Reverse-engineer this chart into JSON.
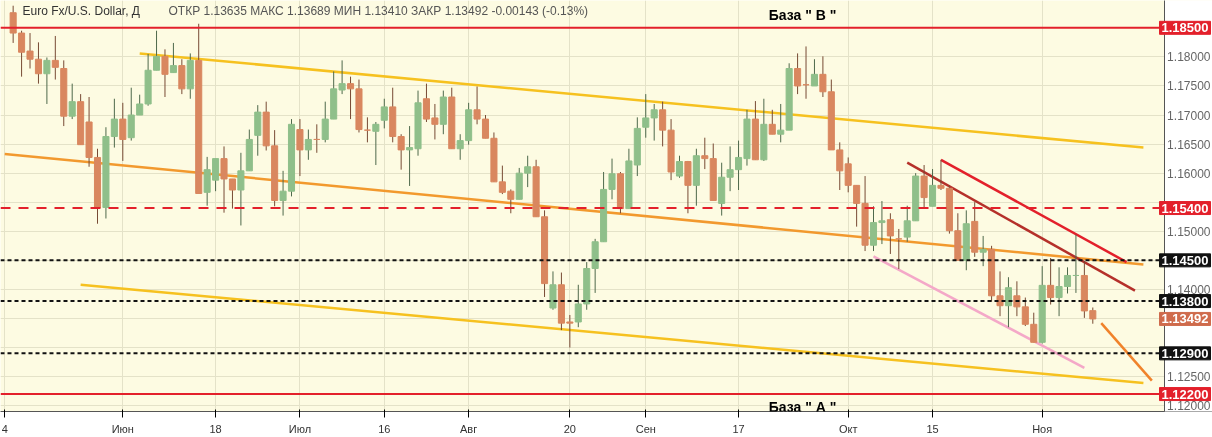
{
  "chart_data": {
    "type": "candlestick",
    "title": "Euro Fx/U.S. Dollar, Д",
    "subtitle": "ОТКР 1.13635   МАКС 1.13689   МИН 1.13410   ЗАКР 1.13492   -0.00143 (-0.13%)",
    "categories": [
      "4",
      null,
      null,
      null,
      null,
      null,
      null,
      null,
      null,
      null,
      null,
      null,
      null,
      null,
      "Июн",
      null,
      null,
      null,
      null,
      null,
      null,
      null,
      null,
      null,
      null,
      "18",
      null,
      null,
      null,
      null,
      null,
      null,
      null,
      null,
      null,
      "Июл",
      null,
      null,
      null,
      null,
      null,
      null,
      null,
      null,
      null,
      "16",
      null,
      null,
      null,
      null,
      null,
      null,
      null,
      null,
      null,
      "Авг",
      null,
      null,
      null,
      null,
      null,
      null,
      null,
      null,
      null,
      null,
      null,
      "20",
      null,
      null,
      null,
      null,
      null,
      null,
      null,
      null,
      "Сен",
      null,
      null,
      null,
      null,
      null,
      null,
      null,
      null,
      null,
      null,
      "17",
      null,
      null,
      null,
      null,
      null,
      null,
      null,
      null,
      null,
      null,
      null,
      null,
      "Окт",
      null,
      null,
      null,
      null,
      null,
      null,
      null,
      null,
      null,
      "15",
      null,
      null,
      null,
      null,
      null,
      null,
      null,
      null,
      null,
      null,
      null,
      null,
      "Ноя",
      null,
      null,
      null,
      null,
      null,
      null,
      null,
      null,
      null,
      null,
      null,
      null,
      null,
      null
    ],
    "ohlc": [
      null,
      [
        1.1876,
        1.1888,
        1.1824,
        1.1841
      ],
      [
        1.1841,
        1.1845,
        1.1766,
        1.1808
      ],
      [
        1.181,
        1.1841,
        1.178,
        1.1796
      ],
      [
        1.1796,
        1.1825,
        1.1754,
        1.1771
      ],
      [
        1.1771,
        1.1799,
        1.1719,
        1.1794
      ],
      [
        1.1794,
        1.1836,
        1.1761,
        1.1782
      ],
      [
        1.178,
        1.1794,
        1.1681,
        1.1698
      ],
      [
        1.1698,
        1.1754,
        1.1693,
        1.1723
      ],
      [
        1.1723,
        1.1736,
        1.1649,
        1.1649
      ],
      [
        1.1688,
        1.1731,
        1.1611,
        1.1627
      ],
      [
        1.1627,
        1.1642,
        1.1513,
        1.1541
      ],
      [
        1.1541,
        1.1679,
        1.1522,
        1.1663
      ],
      [
        1.1663,
        1.1728,
        1.1644,
        1.1693
      ],
      [
        1.1693,
        1.1721,
        1.1621,
        1.1658
      ],
      [
        1.1661,
        1.1747,
        1.1656,
        1.17
      ],
      [
        1.17,
        1.1735,
        1.17,
        1.1719
      ],
      [
        1.1719,
        1.1805,
        1.1716,
        1.1777
      ],
      [
        1.1777,
        1.1845,
        1.1777,
        1.1801
      ],
      [
        1.1801,
        1.1813,
        1.1731,
        1.177
      ],
      [
        1.1773,
        1.1824,
        1.1773,
        1.1785
      ],
      [
        1.1785,
        1.1796,
        1.1736,
        1.1745
      ],
      [
        1.1745,
        1.1806,
        1.1728,
        1.1794
      ],
      [
        1.1794,
        1.1857,
        1.1565,
        1.1565
      ],
      [
        1.1567,
        1.1628,
        1.1544,
        1.1606
      ],
      [
        1.1588,
        1.1625,
        1.1569,
        1.1625
      ],
      [
        1.1625,
        1.1646,
        1.1532,
        1.159
      ],
      [
        1.159,
        1.159,
        1.1539,
        1.1571
      ],
      [
        1.1571,
        1.1635,
        1.151,
        1.1604
      ],
      [
        1.1604,
        1.1675,
        1.1604,
        1.1658
      ],
      [
        1.1665,
        1.1717,
        1.163,
        1.1705
      ],
      [
        1.1705,
        1.1723,
        1.1639,
        1.1647
      ],
      [
        1.1647,
        1.1674,
        1.1543,
        1.1553
      ],
      [
        1.1553,
        1.1604,
        1.1527,
        1.1569
      ],
      [
        1.1569,
        1.1693,
        1.156,
        1.1684
      ],
      [
        1.1675,
        1.1693,
        1.1595,
        1.164
      ],
      [
        1.164,
        1.1675,
        1.1623,
        1.1658
      ],
      [
        1.1658,
        1.1684,
        1.1635,
        1.1658
      ],
      [
        1.1658,
        1.1723,
        1.1653,
        1.1693
      ],
      [
        1.1693,
        1.1775,
        1.1693,
        1.1745
      ],
      [
        1.1743,
        1.1794,
        1.1736,
        1.1754
      ],
      [
        1.1754,
        1.1766,
        1.1693,
        1.1745
      ],
      [
        1.1745,
        1.1761,
        1.167,
        1.1675
      ],
      [
        1.1674,
        1.1696,
        1.1653,
        1.1674
      ],
      [
        1.1672,
        1.1688,
        1.1614,
        1.1684
      ],
      [
        1.1691,
        1.1728,
        1.1677,
        1.1714
      ],
      [
        1.1714,
        1.1747,
        1.1653,
        1.1663
      ],
      [
        1.1663,
        1.1667,
        1.1606,
        1.164
      ],
      [
        1.164,
        1.1681,
        1.1578,
        1.1644
      ],
      [
        1.1642,
        1.1742,
        1.163,
        1.1721
      ],
      [
        1.1728,
        1.1754,
        1.1688,
        1.1693
      ],
      [
        1.1695,
        1.1719,
        1.1658,
        1.1684
      ],
      [
        1.1684,
        1.1742,
        1.1667,
        1.1731
      ],
      [
        1.1731,
        1.1747,
        1.1642,
        1.1642
      ],
      [
        1.1642,
        1.1667,
        1.1623,
        1.1656
      ],
      [
        1.1656,
        1.1721,
        1.1649,
        1.1709
      ],
      [
        1.1709,
        1.1749,
        1.1684,
        1.1693
      ],
      [
        1.1693,
        1.17,
        1.166,
        1.166
      ],
      [
        1.166,
        1.167,
        1.1585,
        1.1585
      ],
      [
        1.1585,
        1.1613,
        1.1564,
        1.1567
      ],
      [
        1.1569,
        1.1572,
        1.1531,
        1.1555
      ],
      [
        1.1555,
        1.1609,
        1.1555,
        1.16
      ],
      [
        1.16,
        1.163,
        1.1576,
        1.1611
      ],
      [
        1.1611,
        1.1623,
        1.1525,
        1.1525
      ],
      [
        1.1525,
        1.1536,
        1.1387,
        1.141
      ],
      [
        1.1368,
        1.1431,
        1.1365,
        1.1408
      ],
      [
        1.1408,
        1.1429,
        1.133,
        1.1342
      ],
      [
        1.1344,
        1.1356,
        1.13,
        1.1342
      ],
      [
        1.1344,
        1.1408,
        1.1335,
        1.1375
      ],
      [
        1.1375,
        1.1447,
        1.1365,
        1.1436
      ],
      [
        1.1436,
        1.1487,
        1.1394,
        1.1482
      ],
      [
        1.1482,
        1.1602,
        1.1482,
        1.1572
      ],
      [
        1.1572,
        1.1625,
        1.1555,
        1.1599
      ],
      [
        1.1599,
        1.1602,
        1.1531,
        1.1539
      ],
      [
        1.1539,
        1.1642,
        1.1539,
        1.1621
      ],
      [
        1.1614,
        1.1696,
        1.1595,
        1.1677
      ],
      [
        1.1679,
        1.1736,
        1.1661,
        1.1695
      ],
      [
        1.1695,
        1.1719,
        1.1656,
        1.1709
      ],
      [
        1.1709,
        1.1723,
        1.1646,
        1.1674
      ],
      [
        1.1674,
        1.1693,
        1.1588,
        1.1602
      ],
      [
        1.1595,
        1.163,
        1.1592,
        1.162
      ],
      [
        1.162,
        1.1621,
        1.1531,
        1.1579
      ],
      [
        1.1579,
        1.1642,
        1.1544,
        1.163
      ],
      [
        1.163,
        1.1661,
        1.1607,
        1.1625
      ],
      [
        1.1625,
        1.1651,
        1.1553,
        1.1553
      ],
      [
        1.1548,
        1.1618,
        1.1527,
        1.1593
      ],
      [
        1.1593,
        1.1646,
        1.1569,
        1.1606
      ],
      [
        1.1606,
        1.1656,
        1.1571,
        1.1627
      ],
      [
        1.1625,
        1.1709,
        1.1613,
        1.1693
      ],
      [
        1.1693,
        1.1724,
        1.1623,
        1.1623
      ],
      [
        1.1623,
        1.1728,
        1.1621,
        1.1684
      ],
      [
        1.1684,
        1.1709,
        1.1667,
        1.1667
      ],
      [
        1.1667,
        1.1719,
        1.1653,
        1.1674
      ],
      [
        1.1674,
        1.1789,
        1.1674,
        1.178
      ],
      [
        1.178,
        1.1806,
        1.1736,
        1.175
      ],
      [
        1.1752,
        1.1818,
        1.1728,
        1.1752
      ],
      [
        1.175,
        1.1796,
        1.175,
        1.177
      ],
      [
        1.177,
        1.1801,
        1.1731,
        1.174
      ],
      [
        1.174,
        1.1761,
        1.164,
        1.164
      ],
      [
        1.164,
        1.1653,
        1.1571,
        1.1604
      ],
      [
        1.1616,
        1.1627,
        1.1567,
        1.1579
      ],
      [
        1.1579,
        1.1579,
        1.1508,
        1.1548
      ],
      [
        1.1548,
        1.1595,
        1.1466,
        1.1476
      ],
      [
        1.1476,
        1.1543,
        1.1466,
        1.1515
      ],
      [
        1.1515,
        1.1552,
        1.1478,
        1.1518
      ],
      [
        1.152,
        1.1531,
        1.1461,
        1.1492
      ],
      [
        1.1487,
        1.1504,
        1.1435,
        1.1487
      ],
      [
        1.149,
        1.1544,
        1.1482,
        1.1518
      ],
      [
        1.1518,
        1.16,
        1.1518,
        1.1595
      ],
      [
        1.1595,
        1.1614,
        1.1539,
        1.1558
      ],
      [
        1.1543,
        1.1607,
        1.1543,
        1.1579
      ],
      [
        1.1579,
        1.1623,
        1.1571,
        1.1574
      ],
      [
        1.1574,
        1.1579,
        1.1496,
        1.1501
      ],
      [
        1.1501,
        1.1531,
        1.145,
        1.145
      ],
      [
        1.145,
        1.1536,
        1.1433,
        1.1513
      ],
      [
        1.1517,
        1.155,
        1.1456,
        1.1464
      ],
      [
        1.1464,
        1.1492,
        1.144,
        1.1469
      ],
      [
        1.1469,
        1.1475,
        1.1379,
        1.1389
      ],
      [
        1.1389,
        1.1431,
        1.1354,
        1.1372
      ],
      [
        1.1372,
        1.1421,
        1.1335,
        1.1403
      ],
      [
        1.1389,
        1.1414,
        1.1354,
        1.137
      ],
      [
        1.137,
        1.1386,
        1.1337,
        1.134
      ],
      [
        1.134,
        1.136,
        1.1309,
        1.1309
      ],
      [
        1.1309,
        1.144,
        1.1307,
        1.1407
      ],
      [
        1.1407,
        1.1454,
        1.1374,
        1.1386
      ],
      [
        1.1386,
        1.1438,
        1.1354,
        1.1405
      ],
      [
        1.1405,
        1.1438,
        1.1393,
        1.1424
      ],
      [
        1.1424,
        1.1494,
        1.1394,
        1.1424
      ],
      [
        1.1424,
        1.1449,
        1.1351,
        1.1363
      ],
      [
        1.13635,
        1.13689,
        1.1341,
        1.13492
      ],
      null,
      null,
      null,
      null,
      null,
      null,
      null,
      null
    ],
    "colors": [
      null,
      "#d9875f",
      "#d9875f",
      "#d9875f",
      "#d9875f",
      "#8fbf8a",
      "#d9875f",
      "#d9875f",
      "#8fbf8a",
      "#d9875f",
      "#d9875f",
      "#d9875f",
      "#8fbf8a",
      "#8fbf8a",
      "#d9875f",
      "#8fbf8a",
      "#8fbf8a",
      "#8fbf8a",
      "#8fbf8a",
      "#d9875f",
      "#8fbf8a",
      "#d9875f",
      "#8fbf8a",
      "#d9875f",
      "#8fbf8a",
      "#8fbf8a",
      "#d9875f",
      "#d9875f",
      "#8fbf8a",
      "#8fbf8a",
      "#8fbf8a",
      "#d9875f",
      "#d9875f",
      "#8fbf8a",
      "#8fbf8a",
      "#d9875f",
      "#8fbf8a",
      "#d9875f",
      "#8fbf8a",
      "#8fbf8a",
      "#8fbf8a",
      "#d9875f",
      "#d9875f",
      "#d9875f",
      "#8fbf8a",
      "#8fbf8a",
      "#d9875f",
      "#d9875f",
      "#8fbf8a",
      "#8fbf8a",
      "#d9875f",
      "#d9875f",
      "#8fbf8a",
      "#d9875f",
      "#8fbf8a",
      "#8fbf8a",
      "#d9875f",
      "#d9875f",
      "#d9875f",
      "#d9875f",
      "#d9875f",
      "#8fbf8a",
      "#8fbf8a",
      "#d9875f",
      "#d9875f",
      "#8fbf8a",
      "#d9875f",
      "#d9875f",
      "#8fbf8a",
      "#8fbf8a",
      "#8fbf8a",
      "#8fbf8a",
      "#8fbf8a",
      "#d9875f",
      "#8fbf8a",
      "#8fbf8a",
      "#8fbf8a",
      "#8fbf8a",
      "#d9875f",
      "#d9875f",
      "#8fbf8a",
      "#d9875f",
      "#8fbf8a",
      "#d9875f",
      "#d9875f",
      "#8fbf8a",
      "#8fbf8a",
      "#8fbf8a",
      "#8fbf8a",
      "#d9875f",
      "#8fbf8a",
      "#d9875f",
      "#8fbf8a",
      "#8fbf8a",
      "#d9875f",
      "#d9875f",
      "#8fbf8a",
      "#d9875f",
      "#d9875f",
      "#d9875f",
      "#d9875f",
      "#d9875f",
      "#d9875f",
      "#8fbf8a",
      "#8fbf8a",
      "#d9875f",
      "#d9875f",
      "#8fbf8a",
      "#8fbf8a",
      "#d9875f",
      "#8fbf8a",
      "#d9875f",
      "#d9875f",
      "#d9875f",
      "#8fbf8a",
      "#d9875f",
      "#8fbf8a",
      "#d9875f",
      "#d9875f",
      "#8fbf8a",
      "#d9875f",
      "#d9875f",
      "#d9875f",
      "#8fbf8a",
      "#d9875f",
      "#8fbf8a",
      "#8fbf8a",
      "#8fbf8a",
      "#d9875f",
      "#d9875f",
      null,
      null,
      null,
      null,
      null,
      null,
      null,
      null
    ],
    "series": [
      {
        "type": "line",
        "color": "#f6c11f",
        "values": [
          null,
          null,
          null,
          null,
          null,
          null,
          null,
          null,
          null,
          null,
          null,
          null,
          null,
          null,
          null,
          null,
          1.1806,
          null,
          null,
          null,
          null,
          null,
          null,
          null,
          null,
          null,
          null,
          null,
          null,
          null,
          null,
          null,
          null,
          null,
          null,
          null,
          null,
          null,
          null,
          null,
          null,
          null,
          null,
          null,
          null,
          null,
          null,
          null,
          null,
          null,
          null,
          null,
          null,
          null,
          null,
          null,
          null,
          null,
          null,
          null,
          null,
          null,
          null,
          null,
          null,
          null,
          null,
          null,
          null,
          null,
          null,
          null,
          null,
          null,
          null,
          null,
          null,
          null,
          null,
          null,
          null,
          null,
          null,
          null,
          null,
          null,
          null,
          null,
          null,
          null,
          null,
          null,
          null,
          null,
          null,
          null,
          null,
          null,
          null,
          null,
          null,
          null,
          null,
          null,
          null,
          null,
          null,
          null,
          null,
          null,
          null,
          null,
          null,
          null,
          null,
          null,
          null,
          null,
          null,
          null,
          null,
          null,
          null,
          null,
          null,
          null,
          null,
          null,
          null,
          null,
          null,
          null,
          null,
          null,
          null,
          1.1644,
          null,
          null
        ]
      },
      {
        "type": "line",
        "color": "#f6c11f",
        "values": [
          null,
          null,
          null,
          null,
          null,
          null,
          null,
          null,
          null,
          1.1408,
          null,
          null,
          null,
          null,
          null,
          null,
          null,
          null,
          null,
          null,
          null,
          null,
          null,
          null,
          null,
          null,
          null,
          null,
          null,
          null,
          null,
          null,
          null,
          null,
          null,
          null,
          null,
          null,
          null,
          null,
          null,
          null,
          null,
          null,
          null,
          null,
          null,
          null,
          null,
          null,
          null,
          null,
          null,
          null,
          null,
          null,
          null,
          null,
          null,
          null,
          null,
          null,
          null,
          null,
          null,
          null,
          null,
          null,
          null,
          null,
          null,
          null,
          null,
          null,
          null,
          null,
          null,
          null,
          null,
          null,
          null,
          null,
          null,
          null,
          null,
          null,
          null,
          null,
          null,
          null,
          null,
          null,
          null,
          null,
          null,
          null,
          null,
          null,
          null,
          null,
          null,
          null,
          null,
          null,
          null,
          null,
          null,
          null,
          null,
          null,
          null,
          null,
          null,
          null,
          null,
          null,
          null,
          null,
          null,
          null,
          null,
          null,
          null,
          null,
          null,
          null,
          null,
          null,
          null,
          null,
          null,
          null,
          null,
          null,
          null,
          1.1239,
          null,
          null
        ]
      },
      {
        "type": "line",
        "color": "#f2992e",
        "values": [
          1.1633,
          null,
          null,
          null,
          null,
          null,
          null,
          null,
          null,
          null,
          null,
          null,
          null,
          null,
          null,
          null,
          null,
          null,
          null,
          null,
          null,
          null,
          null,
          null,
          null,
          null,
          null,
          null,
          null,
          null,
          null,
          null,
          null,
          null,
          null,
          null,
          null,
          null,
          null,
          null,
          null,
          null,
          null,
          null,
          null,
          null,
          null,
          null,
          null,
          null,
          null,
          null,
          null,
          null,
          null,
          null,
          null,
          null,
          null,
          null,
          null,
          null,
          null,
          null,
          null,
          null,
          null,
          null,
          null,
          null,
          null,
          null,
          null,
          null,
          null,
          null,
          null,
          null,
          null,
          null,
          null,
          null,
          null,
          null,
          null,
          null,
          null,
          null,
          null,
          null,
          null,
          null,
          null,
          null,
          null,
          null,
          null,
          null,
          null,
          null,
          null,
          null,
          null,
          null,
          null,
          null,
          null,
          null,
          null,
          null,
          null,
          null,
          null,
          null,
          null,
          null,
          null,
          null,
          null,
          null,
          null,
          null,
          null,
          null,
          null,
          null,
          null,
          null,
          null,
          null,
          null,
          null,
          null,
          null,
          null,
          1.1443,
          null,
          null
        ]
      },
      {
        "type": "line",
        "color": "#e3202b",
        "values": [
          null,
          null,
          null,
          null,
          null,
          null,
          null,
          null,
          null,
          null,
          null,
          null,
          null,
          null,
          null,
          null,
          null,
          null,
          null,
          null,
          null,
          null,
          null,
          null,
          null,
          null,
          null,
          null,
          null,
          null,
          null,
          null,
          null,
          null,
          null,
          null,
          null,
          null,
          null,
          null,
          null,
          null,
          null,
          null,
          null,
          null,
          null,
          null,
          null,
          null,
          null,
          null,
          null,
          null,
          null,
          null,
          null,
          null,
          null,
          null,
          null,
          null,
          null,
          null,
          null,
          null,
          null,
          null,
          null,
          null,
          null,
          null,
          null,
          null,
          null,
          null,
          null,
          null,
          null,
          null,
          null,
          null,
          null,
          null,
          null,
          null,
          null,
          null,
          null,
          null,
          null,
          null,
          null,
          null,
          null,
          null,
          null,
          null,
          null,
          null,
          null,
          null,
          null,
          null,
          null,
          null,
          null,
          null,
          null,
          null,
          null,
          1.1623,
          null,
          null,
          null,
          null,
          null,
          null,
          null,
          null,
          null,
          null,
          null,
          null,
          null,
          null,
          null,
          null,
          null,
          null,
          null,
          null,
          null,
          1.1447,
          null,
          null,
          null,
          null
        ]
      },
      {
        "type": "line",
        "color": "#b5302a",
        "values": [
          null,
          null,
          null,
          null,
          null,
          null,
          null,
          null,
          null,
          null,
          null,
          null,
          null,
          null,
          null,
          null,
          null,
          null,
          null,
          null,
          null,
          null,
          null,
          null,
          null,
          null,
          null,
          null,
          null,
          null,
          null,
          null,
          null,
          null,
          null,
          null,
          null,
          null,
          null,
          null,
          null,
          null,
          null,
          null,
          null,
          null,
          null,
          null,
          null,
          null,
          null,
          null,
          null,
          null,
          null,
          null,
          null,
          null,
          null,
          null,
          null,
          null,
          null,
          null,
          null,
          null,
          null,
          null,
          null,
          null,
          null,
          null,
          null,
          null,
          null,
          null,
          null,
          null,
          null,
          null,
          null,
          null,
          null,
          null,
          null,
          null,
          null,
          null,
          null,
          null,
          null,
          null,
          null,
          null,
          null,
          null,
          null,
          null,
          null,
          null,
          null,
          null,
          null,
          null,
          null,
          null,
          null,
          1.1618,
          null,
          null,
          null,
          null,
          null,
          null,
          null,
          null,
          null,
          null,
          null,
          null,
          null,
          null,
          null,
          null,
          null,
          null,
          null,
          null,
          null,
          null,
          null,
          null,
          null,
          null,
          1.1398,
          null,
          null,
          null
        ]
      },
      {
        "type": "line",
        "color": "#f4a8c8",
        "values": [
          null,
          null,
          null,
          null,
          null,
          null,
          null,
          null,
          null,
          null,
          null,
          null,
          null,
          null,
          null,
          null,
          null,
          null,
          null,
          null,
          null,
          null,
          null,
          null,
          null,
          null,
          null,
          null,
          null,
          null,
          null,
          null,
          null,
          null,
          null,
          null,
          null,
          null,
          null,
          null,
          null,
          null,
          null,
          null,
          null,
          null,
          null,
          null,
          null,
          null,
          null,
          null,
          null,
          null,
          null,
          null,
          null,
          null,
          null,
          null,
          null,
          null,
          null,
          null,
          null,
          null,
          null,
          null,
          null,
          null,
          null,
          null,
          null,
          null,
          null,
          null,
          null,
          null,
          null,
          null,
          null,
          null,
          null,
          null,
          null,
          null,
          null,
          null,
          null,
          null,
          null,
          null,
          null,
          null,
          null,
          null,
          null,
          null,
          null,
          null,
          null,
          null,
          null,
          1.1457,
          null,
          null,
          null,
          null,
          null,
          null,
          null,
          null,
          null,
          null,
          null,
          null,
          null,
          null,
          null,
          null,
          null,
          null,
          null,
          null,
          null,
          null,
          null,
          null,
          1.1265,
          null,
          null,
          null,
          null,
          null,
          null,
          null,
          null,
          null
        ]
      },
      {
        "type": "line",
        "color": "#f0822a",
        "values": [
          null,
          null,
          null,
          null,
          null,
          null,
          null,
          null,
          null,
          null,
          null,
          null,
          null,
          null,
          null,
          null,
          null,
          null,
          null,
          null,
          null,
          null,
          null,
          null,
          null,
          null,
          null,
          null,
          null,
          null,
          null,
          null,
          null,
          null,
          null,
          null,
          null,
          null,
          null,
          null,
          null,
          null,
          null,
          null,
          null,
          null,
          null,
          null,
          null,
          null,
          null,
          null,
          null,
          null,
          null,
          null,
          null,
          null,
          null,
          null,
          null,
          null,
          null,
          null,
          null,
          null,
          null,
          null,
          null,
          null,
          null,
          null,
          null,
          null,
          null,
          null,
          null,
          null,
          null,
          null,
          null,
          null,
          null,
          null,
          null,
          null,
          null,
          null,
          null,
          null,
          null,
          null,
          null,
          null,
          null,
          null,
          null,
          null,
          null,
          null,
          null,
          null,
          null,
          null,
          null,
          null,
          null,
          null,
          null,
          null,
          null,
          null,
          null,
          null,
          null,
          null,
          null,
          null,
          null,
          null,
          null,
          null,
          null,
          null,
          null,
          null,
          null,
          null,
          null,
          null,
          1.1342,
          null,
          null,
          null,
          null,
          null,
          1.1243,
          null
        ]
      }
    ],
    "ylim": [
      1.119,
      1.1897
    ],
    "yticks": [
      {
        "value": 1.12,
        "label": "1.12000"
      },
      {
        "value": 1.125,
        "label": "1.12500"
      },
      {
        "value": 1.13,
        "label": null
      },
      {
        "value": 1.135,
        "label": null
      },
      {
        "value": 1.14,
        "label": "1.14000"
      },
      {
        "value": 1.145,
        "label": null
      },
      {
        "value": 1.15,
        "label": "1.15000"
      },
      {
        "value": 1.155,
        "label": null
      },
      {
        "value": 1.16,
        "label": "1.16000"
      },
      {
        "value": 1.165,
        "label": "1.16500"
      },
      {
        "value": 1.17,
        "label": "1.17000"
      },
      {
        "value": 1.175,
        "label": "1.17500"
      },
      {
        "value": 1.18,
        "label": "1.18000"
      },
      {
        "value": 1.185,
        "label": null
      }
    ],
    "ref_lines": [
      {
        "axis": "y",
        "value": 1.185,
        "label": "1.18500",
        "color": "#e3202b",
        "line_style": "solid"
      },
      {
        "axis": "y",
        "value": 1.154,
        "label": "1.15400",
        "color": "#e3202b",
        "line_style": "dashed"
      },
      {
        "axis": "y",
        "value": 1.145,
        "label": "1.14500",
        "color": "#111111",
        "line_style": "dotted"
      },
      {
        "axis": "y",
        "value": 1.138,
        "label": "1.13800",
        "color": "#111111",
        "line_style": "dotted"
      },
      {
        "axis": "y",
        "value": 1.129,
        "label": "1.12900",
        "color": "#111111",
        "line_style": "dotted"
      },
      {
        "axis": "y",
        "value": 1.122,
        "label": "1.12200",
        "color": "#e3202b",
        "line_style": "solid"
      }
    ],
    "annotations": [
      "База \" В \"",
      "База \" А \"",
      "1.13492"
    ],
    "grid": true
  }
}
